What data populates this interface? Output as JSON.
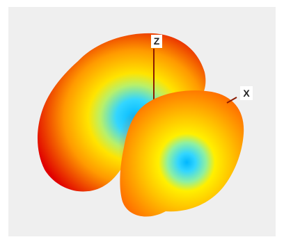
{
  "axes": {
    "z_label": "Z",
    "x_label": "X"
  },
  "colors": {
    "background": "#efefef",
    "frame": "#ffffff",
    "axis_line": "#8b1a00",
    "lobe_edge": "#e00000",
    "lobe_mid": "#ff7a00",
    "lobe_yellow": "#ffd000",
    "lobe_cyan": "#33d6ff",
    "lobe_center": "#00b7ff"
  }
}
